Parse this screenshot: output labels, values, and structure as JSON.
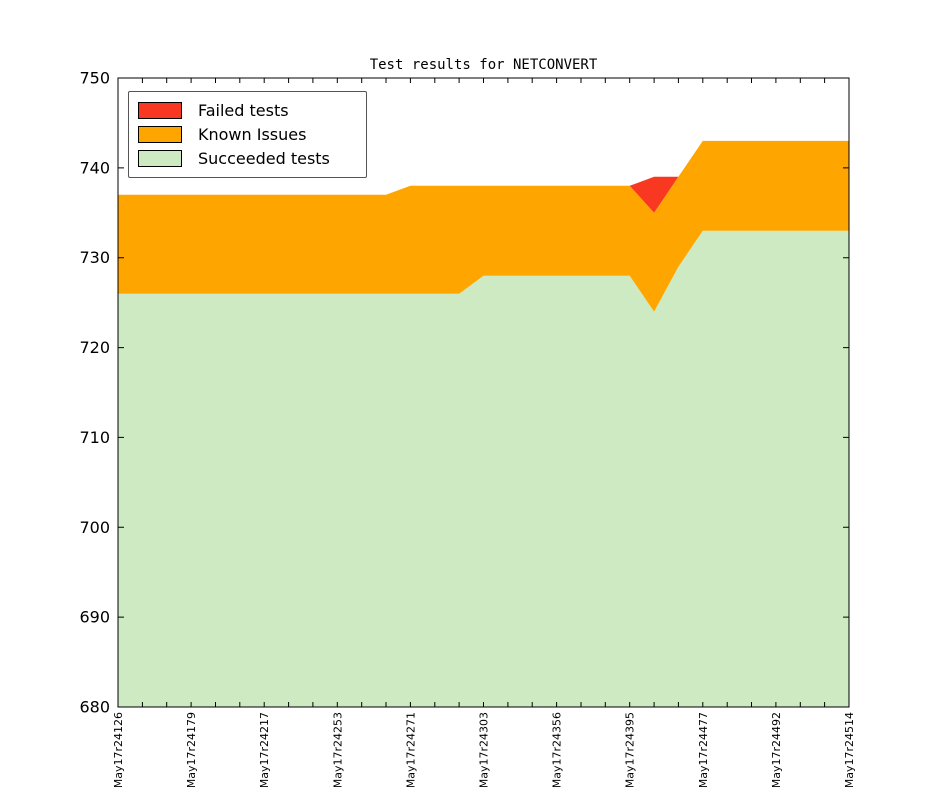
{
  "chart_data": {
    "type": "area",
    "title": "Test results for NETCONVERT",
    "xlabel": "",
    "ylabel": "",
    "ylim": [
      680,
      750
    ],
    "yticks": [
      680,
      690,
      700,
      710,
      720,
      730,
      740,
      750
    ],
    "grid": false,
    "legend_position": "upper-left",
    "n_points": 31,
    "label_every_n_ticks": 3,
    "x_tick_labels": [
      "May17r24126",
      "May17r24179",
      "May17r24217",
      "May17r24253",
      "May17r24271",
      "May17r24303",
      "May17r24356",
      "May17r24395",
      "May17r24477",
      "May17r24492",
      "May17r24514"
    ],
    "series": [
      {
        "name": "Failed tests",
        "color": "#f93822"
      },
      {
        "name": "Known Issues",
        "color": "#ffa500"
      },
      {
        "name": "Succeeded tests",
        "color": "#cdeac3"
      }
    ],
    "stack_tops": {
      "succeeded": [
        726,
        726,
        726,
        726,
        726,
        726,
        726,
        726,
        726,
        726,
        726,
        726,
        726,
        726,
        726,
        728,
        728,
        728,
        728,
        728,
        728,
        728,
        724,
        729,
        733,
        733,
        733,
        733,
        733,
        733,
        733
      ],
      "known_issues": [
        737,
        737,
        737,
        737,
        737,
        737,
        737,
        737,
        737,
        737,
        737,
        737,
        738,
        738,
        738,
        738,
        738,
        738,
        738,
        738,
        738,
        738,
        735,
        739,
        743,
        743,
        743,
        743,
        743,
        743,
        743
      ],
      "failed_total": [
        737,
        737,
        737,
        737,
        737,
        737,
        737,
        737,
        737,
        737,
        737,
        737,
        738,
        738,
        738,
        738,
        738,
        738,
        738,
        738,
        738,
        738,
        739,
        739,
        743,
        743,
        743,
        743,
        743,
        743,
        743
      ]
    }
  }
}
